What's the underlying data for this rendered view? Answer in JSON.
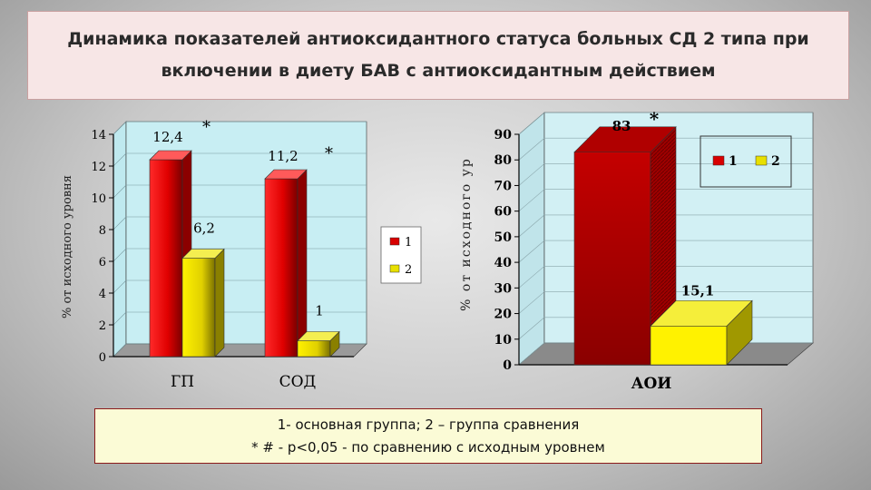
{
  "title": {
    "line1": "Динамика показателей антиоксидантного статуса больных СД 2 типа при",
    "line2": "включении в диету БАВ с антиоксидантным действием"
  },
  "notes": {
    "line1": "1- основная группа; 2 – группа сравнения",
    "line2": "* # - p<0,05 - по сравнению с исходным уровнем"
  },
  "colors": {
    "series1": "#d80000",
    "series2": "#e8e000"
  },
  "chart_data": [
    {
      "type": "bar",
      "categories": [
        "ГП",
        "СОД"
      ],
      "series": [
        {
          "name": "1",
          "values": [
            12.4,
            11.2
          ],
          "labels": [
            "12,4",
            "11,2"
          ],
          "marks": [
            "*",
            "*"
          ]
        },
        {
          "name": "2",
          "values": [
            6.2,
            1
          ],
          "labels": [
            "6,2",
            "1"
          ],
          "marks": [
            "",
            ""
          ]
        }
      ],
      "ylabel": "% от исходного уровня",
      "ylim": [
        0,
        14
      ],
      "yticks": [
        "0",
        "2",
        "4",
        "6",
        "8",
        "10",
        "12",
        "14"
      ],
      "legend": "right"
    },
    {
      "type": "bar",
      "categories": [
        "АОИ"
      ],
      "series": [
        {
          "name": "1",
          "values": [
            83
          ],
          "labels": [
            "83"
          ],
          "marks": [
            "*"
          ]
        },
        {
          "name": "2",
          "values": [
            15.1
          ],
          "labels": [
            "15,1"
          ],
          "marks": [
            ""
          ]
        }
      ],
      "ylabel": "% от исходного ур",
      "ylim": [
        0,
        90
      ],
      "yticks": [
        "0",
        "10",
        "20",
        "30",
        "40",
        "50",
        "60",
        "70",
        "80",
        "90"
      ],
      "legend": "top-right"
    }
  ]
}
